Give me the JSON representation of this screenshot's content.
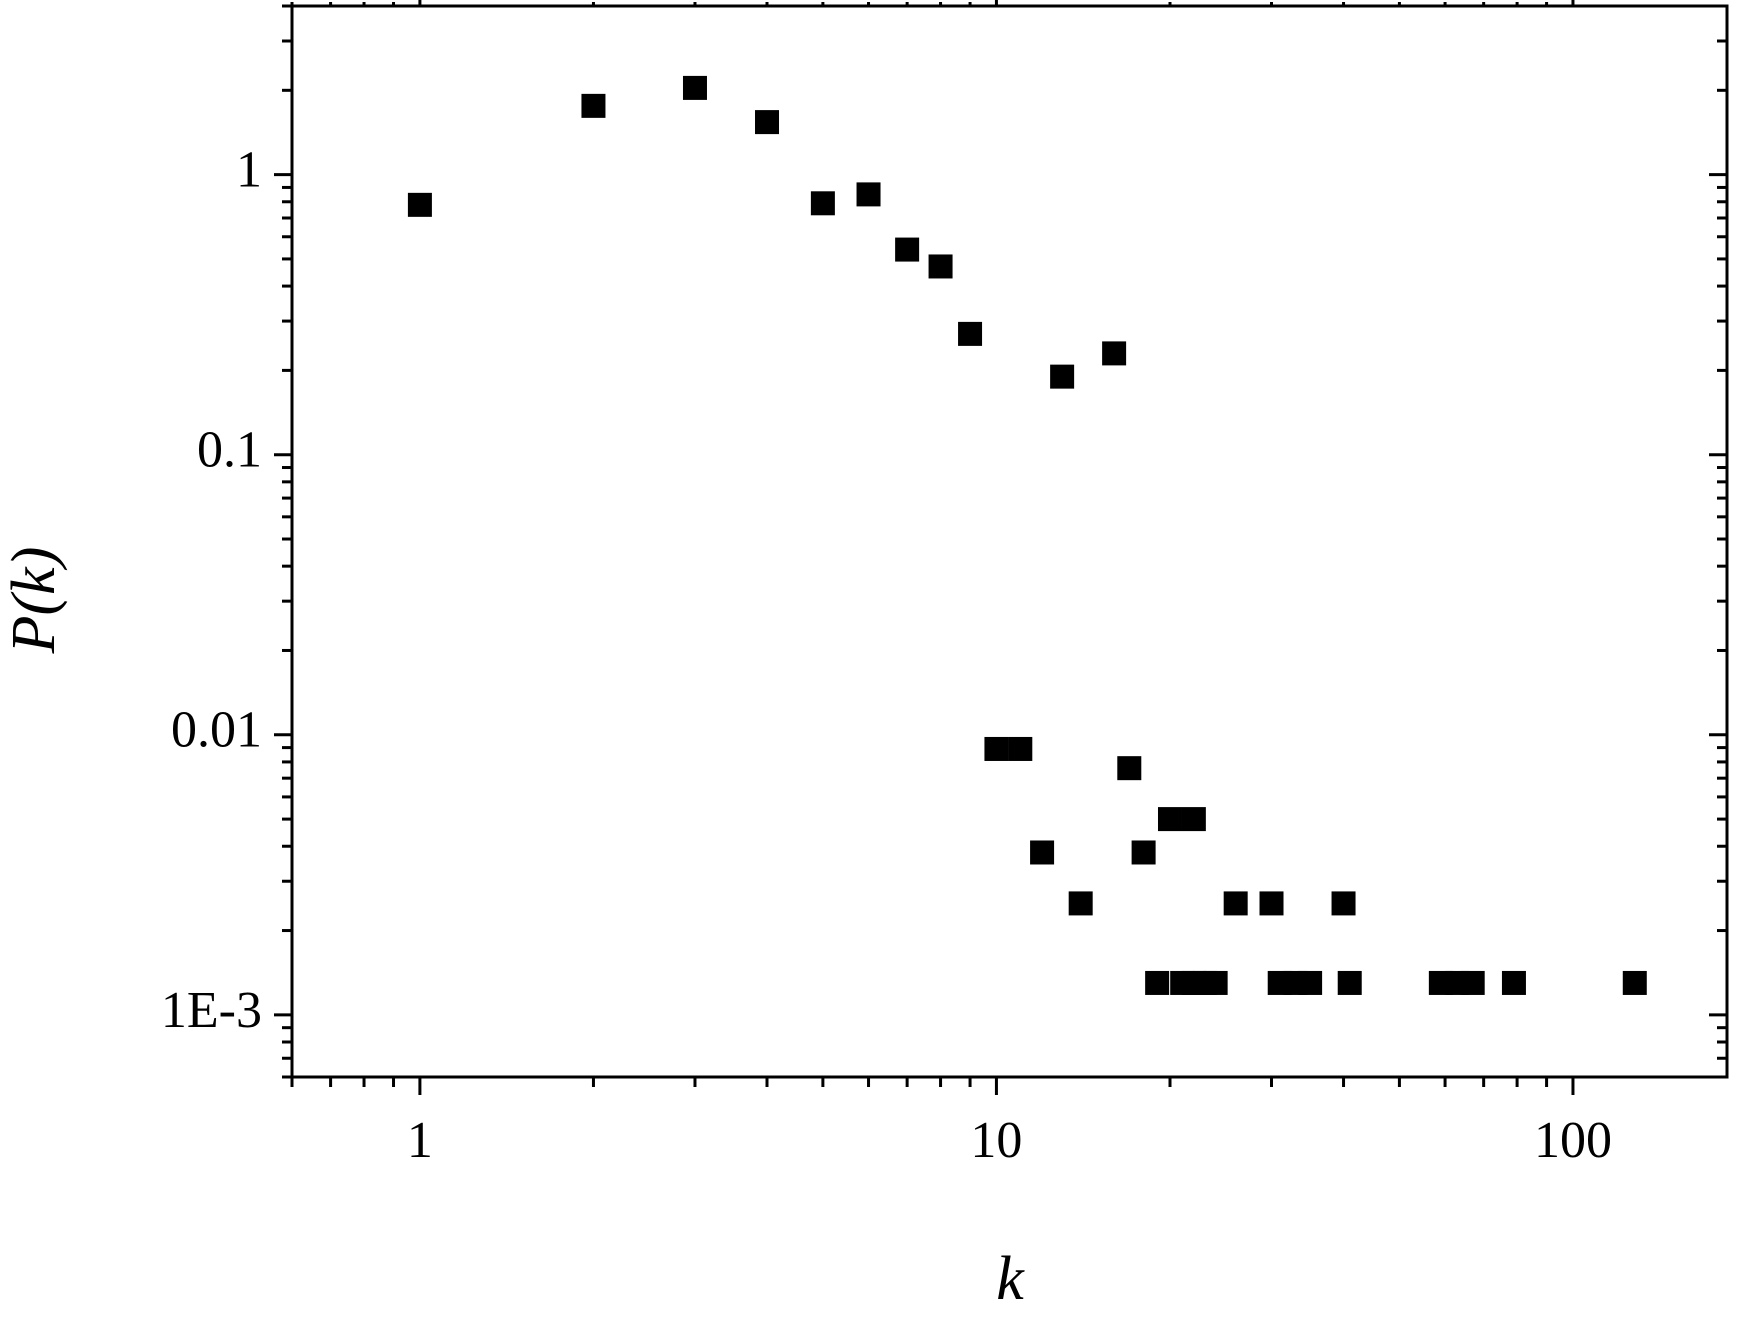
{
  "chart_data": {
    "type": "scatter",
    "x_label": "k",
    "y_label": "P(k)",
    "x_log": true,
    "y_log": true,
    "minor_ticks": true,
    "color": "#000000",
    "marker": "square",
    "xlim": [
      0.6,
      185
    ],
    "ylim": [
      0.0006,
      4
    ],
    "xticks": [
      1,
      10,
      100
    ],
    "yticks": [
      {
        "value": 0.001,
        "label": "1E-3"
      },
      0.01,
      0.1,
      1
    ],
    "x": [
      1,
      2,
      3,
      4,
      5,
      6,
      7,
      8,
      9,
      13,
      16,
      10,
      11,
      12,
      14,
      17,
      18,
      20,
      22,
      26,
      30,
      40,
      19,
      21,
      22,
      23,
      24,
      31,
      33,
      35,
      41,
      59,
      63,
      67,
      79,
      128
    ],
    "values": [
      0.78,
      1.76,
      2.04,
      1.54,
      0.79,
      0.85,
      0.54,
      0.47,
      0.27,
      0.19,
      0.23,
      0.0089,
      0.0089,
      0.0038,
      0.0025,
      0.0076,
      0.0038,
      0.005,
      0.005,
      0.0025,
      0.0025,
      0.0025,
      0.0013,
      0.0013,
      0.0013,
      0.0013,
      0.0013,
      0.0013,
      0.0013,
      0.0013,
      0.0013,
      0.0013,
      0.0013,
      0.0013,
      0.0013,
      0.0013
    ]
  }
}
